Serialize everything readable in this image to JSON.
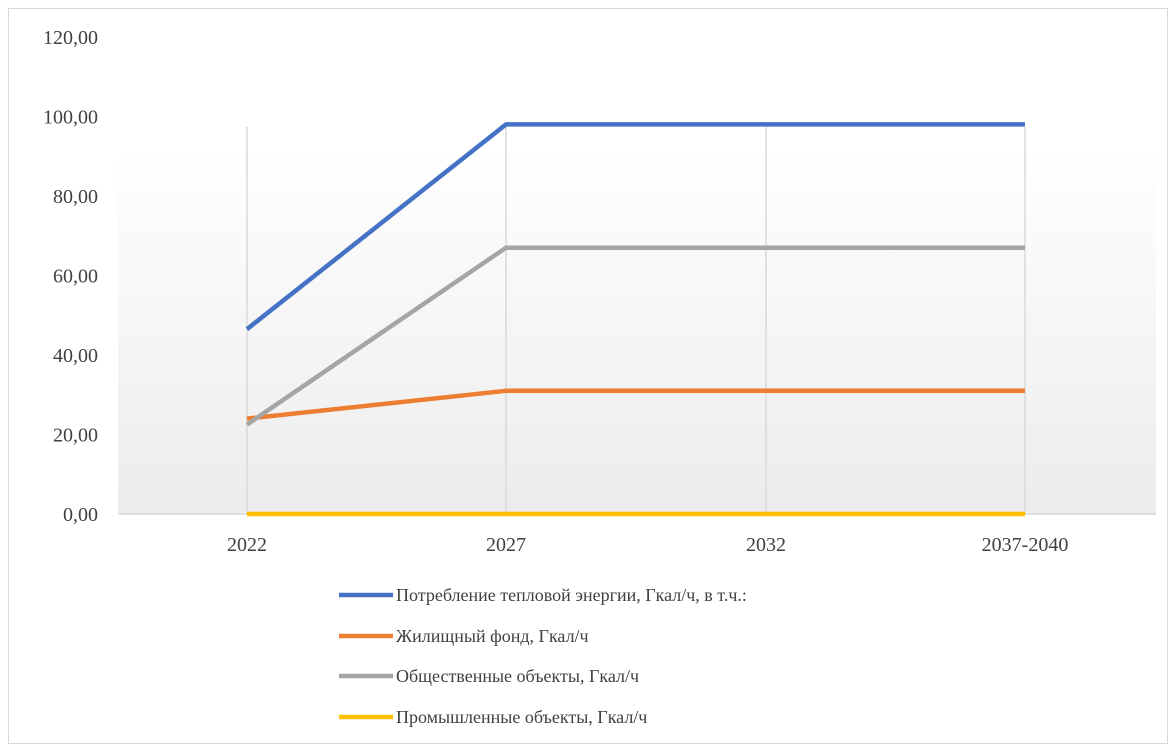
{
  "chart_data": {
    "type": "line",
    "categories": [
      "2022",
      "2027",
      "2032",
      "2037-2040"
    ],
    "ylim": [
      0,
      120
    ],
    "ytick_labels": [
      "0,00",
      "20,00",
      "40,00",
      "60,00",
      "80,00",
      "100,00",
      "120,00"
    ],
    "grid": "vertical",
    "legend_position": "bottom",
    "series": [
      {
        "name": "Потребление тепловой энергии, Гкал/ч, в т.ч.:",
        "color": "#4472C4",
        "values": [
          46.5,
          98.0,
          98.0,
          98.0
        ]
      },
      {
        "name": "Жилищный фонд, Гкал/ч",
        "color": "#ED7D31",
        "values": [
          24.0,
          31.0,
          31.0,
          31.0
        ]
      },
      {
        "name": "Общественные объекты, Гкал/ч",
        "color": "#A5A5A5",
        "values": [
          22.5,
          67.0,
          67.0,
          67.0
        ]
      },
      {
        "name": "Промышленные объекты, Гкал/ч",
        "color": "#FFC000",
        "values": [
          0.0,
          0.0,
          0.0,
          0.0
        ]
      }
    ]
  }
}
